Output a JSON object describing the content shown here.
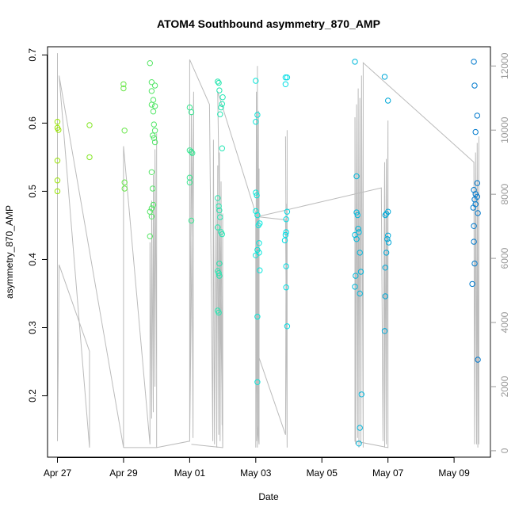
{
  "chart_data": {
    "type": "scatter",
    "title": "ATOM4 Southbound asymmetry_870_AMP",
    "xlabel": "Date",
    "ylabel": "asymmetry_870_AMP",
    "y2label": "",
    "xlim": [
      -0.3,
      13.1
    ],
    "ylim": [
      0.11,
      0.712
    ],
    "y2lim": [
      -200,
      12600
    ],
    "x_ticks": [
      {
        "value": 0,
        "label": "Apr 27"
      },
      {
        "value": 2,
        "label": "Apr 29"
      },
      {
        "value": 4,
        "label": "May 01"
      },
      {
        "value": 6,
        "label": "May 03"
      },
      {
        "value": 8,
        "label": "May 05"
      },
      {
        "value": 10,
        "label": "May 07"
      },
      {
        "value": 12,
        "label": "May 09"
      }
    ],
    "y_ticks": [
      0.2,
      0.3,
      0.4,
      0.5,
      0.6,
      0.7
    ],
    "y2_ticks": [
      0,
      2000,
      4000,
      6000,
      8000,
      10000,
      12000
    ],
    "grid": false,
    "point_color_scale": [
      "#99e600",
      "#00e6e6",
      "#0077cc"
    ],
    "points": [
      {
        "x": 0.0,
        "y": 0.602
      },
      {
        "x": 0.0,
        "y": 0.593
      },
      {
        "x": 0.03,
        "y": 0.59
      },
      {
        "x": 0.0,
        "y": 0.545
      },
      {
        "x": 0.0,
        "y": 0.516
      },
      {
        "x": 0.0,
        "y": 0.5
      },
      {
        "x": 0.97,
        "y": 0.597
      },
      {
        "x": 0.97,
        "y": 0.55
      },
      {
        "x": 2.0,
        "y": 0.657
      },
      {
        "x": 2.0,
        "y": 0.651
      },
      {
        "x": 2.03,
        "y": 0.589
      },
      {
        "x": 2.03,
        "y": 0.513
      },
      {
        "x": 2.03,
        "y": 0.504
      },
      {
        "x": 2.8,
        "y": 0.688
      },
      {
        "x": 2.85,
        "y": 0.66
      },
      {
        "x": 2.95,
        "y": 0.655
      },
      {
        "x": 2.85,
        "y": 0.647
      },
      {
        "x": 2.9,
        "y": 0.634
      },
      {
        "x": 2.85,
        "y": 0.627
      },
      {
        "x": 2.95,
        "y": 0.625
      },
      {
        "x": 2.9,
        "y": 0.617
      },
      {
        "x": 2.92,
        "y": 0.598
      },
      {
        "x": 2.95,
        "y": 0.589
      },
      {
        "x": 2.88,
        "y": 0.582
      },
      {
        "x": 2.92,
        "y": 0.578
      },
      {
        "x": 2.95,
        "y": 0.572
      },
      {
        "x": 2.85,
        "y": 0.528
      },
      {
        "x": 2.88,
        "y": 0.504
      },
      {
        "x": 2.9,
        "y": 0.48
      },
      {
        "x": 2.85,
        "y": 0.475
      },
      {
        "x": 2.8,
        "y": 0.47
      },
      {
        "x": 2.85,
        "y": 0.463
      },
      {
        "x": 2.8,
        "y": 0.434
      },
      {
        "x": 4.0,
        "y": 0.623
      },
      {
        "x": 4.05,
        "y": 0.616
      },
      {
        "x": 4.0,
        "y": 0.56
      },
      {
        "x": 4.05,
        "y": 0.558
      },
      {
        "x": 4.08,
        "y": 0.556
      },
      {
        "x": 4.0,
        "y": 0.52
      },
      {
        "x": 4.0,
        "y": 0.513
      },
      {
        "x": 4.05,
        "y": 0.457
      },
      {
        "x": 4.85,
        "y": 0.661
      },
      {
        "x": 4.88,
        "y": 0.659
      },
      {
        "x": 4.9,
        "y": 0.648
      },
      {
        "x": 5.0,
        "y": 0.638
      },
      {
        "x": 4.98,
        "y": 0.628
      },
      {
        "x": 4.95,
        "y": 0.623
      },
      {
        "x": 4.92,
        "y": 0.613
      },
      {
        "x": 4.98,
        "y": 0.563
      },
      {
        "x": 4.85,
        "y": 0.49
      },
      {
        "x": 4.88,
        "y": 0.478
      },
      {
        "x": 4.9,
        "y": 0.472
      },
      {
        "x": 4.92,
        "y": 0.462
      },
      {
        "x": 4.85,
        "y": 0.447
      },
      {
        "x": 4.95,
        "y": 0.44
      },
      {
        "x": 4.98,
        "y": 0.437
      },
      {
        "x": 4.9,
        "y": 0.394
      },
      {
        "x": 4.85,
        "y": 0.383
      },
      {
        "x": 4.88,
        "y": 0.38
      },
      {
        "x": 4.9,
        "y": 0.376
      },
      {
        "x": 4.85,
        "y": 0.325
      },
      {
        "x": 4.88,
        "y": 0.322
      },
      {
        "x": 6.05,
        "y": 0.612
      },
      {
        "x": 6.0,
        "y": 0.602
      },
      {
        "x": 6.0,
        "y": 0.498
      },
      {
        "x": 6.03,
        "y": 0.494
      },
      {
        "x": 6.0,
        "y": 0.471
      },
      {
        "x": 6.05,
        "y": 0.465
      },
      {
        "x": 6.12,
        "y": 0.453
      },
      {
        "x": 6.08,
        "y": 0.45
      },
      {
        "x": 6.1,
        "y": 0.424
      },
      {
        "x": 6.05,
        "y": 0.414
      },
      {
        "x": 6.1,
        "y": 0.41
      },
      {
        "x": 6.0,
        "y": 0.406
      },
      {
        "x": 6.12,
        "y": 0.384
      },
      {
        "x": 6.05,
        "y": 0.316
      },
      {
        "x": 6.05,
        "y": 0.22
      },
      {
        "x": 6.0,
        "y": 0.662
      },
      {
        "x": 6.9,
        "y": 0.667
      },
      {
        "x": 6.95,
        "y": 0.667
      },
      {
        "x": 6.9,
        "y": 0.657
      },
      {
        "x": 6.95,
        "y": 0.47
      },
      {
        "x": 6.92,
        "y": 0.459
      },
      {
        "x": 6.92,
        "y": 0.44
      },
      {
        "x": 6.9,
        "y": 0.436
      },
      {
        "x": 6.88,
        "y": 0.428
      },
      {
        "x": 6.92,
        "y": 0.39
      },
      {
        "x": 6.92,
        "y": 0.359
      },
      {
        "x": 6.95,
        "y": 0.302
      },
      {
        "x": 9.0,
        "y": 0.69
      },
      {
        "x": 9.05,
        "y": 0.522
      },
      {
        "x": 9.05,
        "y": 0.469
      },
      {
        "x": 9.08,
        "y": 0.465
      },
      {
        "x": 9.1,
        "y": 0.445
      },
      {
        "x": 9.12,
        "y": 0.44
      },
      {
        "x": 9.05,
        "y": 0.43
      },
      {
        "x": 9.0,
        "y": 0.436
      },
      {
        "x": 9.15,
        "y": 0.41
      },
      {
        "x": 9.18,
        "y": 0.382
      },
      {
        "x": 9.02,
        "y": 0.376
      },
      {
        "x": 9.0,
        "y": 0.36
      },
      {
        "x": 9.15,
        "y": 0.35
      },
      {
        "x": 9.2,
        "y": 0.202
      },
      {
        "x": 9.15,
        "y": 0.153
      },
      {
        "x": 9.12,
        "y": 0.13
      },
      {
        "x": 9.9,
        "y": 0.668
      },
      {
        "x": 10.0,
        "y": 0.633
      },
      {
        "x": 10.0,
        "y": 0.47
      },
      {
        "x": 9.95,
        "y": 0.467
      },
      {
        "x": 9.92,
        "y": 0.465
      },
      {
        "x": 10.0,
        "y": 0.435
      },
      {
        "x": 9.98,
        "y": 0.43
      },
      {
        "x": 10.02,
        "y": 0.425
      },
      {
        "x": 9.95,
        "y": 0.41
      },
      {
        "x": 9.92,
        "y": 0.388
      },
      {
        "x": 9.92,
        "y": 0.346
      },
      {
        "x": 9.9,
        "y": 0.295
      },
      {
        "x": 12.6,
        "y": 0.69
      },
      {
        "x": 12.62,
        "y": 0.655
      },
      {
        "x": 12.7,
        "y": 0.611
      },
      {
        "x": 12.65,
        "y": 0.587
      },
      {
        "x": 12.7,
        "y": 0.512
      },
      {
        "x": 12.6,
        "y": 0.502
      },
      {
        "x": 12.65,
        "y": 0.496
      },
      {
        "x": 12.7,
        "y": 0.492
      },
      {
        "x": 12.62,
        "y": 0.488
      },
      {
        "x": 12.65,
        "y": 0.481
      },
      {
        "x": 12.58,
        "y": 0.476
      },
      {
        "x": 12.72,
        "y": 0.468
      },
      {
        "x": 12.6,
        "y": 0.449
      },
      {
        "x": 12.6,
        "y": 0.426
      },
      {
        "x": 12.62,
        "y": 0.394
      },
      {
        "x": 12.55,
        "y": 0.364
      },
      {
        "x": 12.72,
        "y": 0.253
      }
    ],
    "secondary_line": {
      "color": "#bbbbbb",
      "points": [
        [
          0.0,
          300
        ],
        [
          0.0,
          5200
        ],
        [
          0.0,
          12400
        ],
        [
          0.0,
          300
        ],
        [
          0.05,
          5800
        ],
        [
          0.97,
          3100
        ],
        [
          0.97,
          100
        ],
        [
          0.05,
          11700
        ],
        [
          2.0,
          100
        ],
        [
          2.0,
          9500
        ],
        [
          2.8,
          200
        ],
        [
          2.8,
          6500
        ],
        [
          2.85,
          1000
        ],
        [
          2.85,
          7800
        ],
        [
          2.9,
          1200
        ],
        [
          2.9,
          8600
        ],
        [
          2.95,
          2000
        ],
        [
          2.95,
          9400
        ],
        [
          3.0,
          2500
        ],
        [
          3.0,
          9900
        ],
        [
          3.0,
          100
        ],
        [
          2.0,
          100
        ],
        [
          3.0,
          100
        ],
        [
          4.0,
          300
        ],
        [
          4.05,
          10500
        ],
        [
          4.1,
          400
        ],
        [
          4.12,
          11200
        ],
        [
          4.0,
          300
        ],
        [
          4.0,
          12200
        ],
        [
          4.6,
          10800
        ],
        [
          4.7,
          300
        ],
        [
          4.72,
          9700
        ],
        [
          4.75,
          200
        ],
        [
          4.8,
          7800
        ],
        [
          4.82,
          100
        ],
        [
          4.85,
          8900
        ],
        [
          4.88,
          500
        ],
        [
          4.9,
          9300
        ],
        [
          4.92,
          300
        ],
        [
          4.95,
          8400
        ],
        [
          4.98,
          800
        ],
        [
          5.0,
          7400
        ],
        [
          5.0,
          100
        ],
        [
          4.05,
          200
        ],
        [
          5.0,
          100
        ],
        [
          4.85,
          11200
        ],
        [
          6.0,
          7400
        ],
        [
          6.0,
          100
        ],
        [
          6.02,
          11200
        ],
        [
          6.03,
          300
        ],
        [
          6.05,
          12000
        ],
        [
          6.05,
          100
        ],
        [
          6.08,
          10600
        ],
        [
          6.08,
          500
        ],
        [
          6.1,
          8800
        ],
        [
          6.1,
          200
        ],
        [
          6.05,
          800
        ],
        [
          6.0,
          3200
        ],
        [
          6.9,
          500
        ],
        [
          6.92,
          7700
        ],
        [
          6.95,
          100
        ],
        [
          6.9,
          9800
        ],
        [
          6.95,
          400
        ],
        [
          6.95,
          10000
        ],
        [
          6.95,
          100
        ],
        [
          6.9,
          7200
        ],
        [
          6.05,
          7300
        ],
        [
          9.8,
          8200
        ],
        [
          9.85,
          300
        ],
        [
          9.9,
          9000
        ],
        [
          9.9,
          100
        ],
        [
          9.95,
          9100
        ],
        [
          9.95,
          200
        ],
        [
          10.0,
          10300
        ],
        [
          10.0,
          100
        ],
        [
          9.0,
          300
        ],
        [
          9.0,
          10400
        ],
        [
          9.02,
          200
        ],
        [
          9.05,
          10800
        ],
        [
          9.08,
          400
        ],
        [
          9.1,
          11300
        ],
        [
          9.12,
          100
        ],
        [
          9.15,
          11000
        ],
        [
          9.18,
          200
        ],
        [
          9.2,
          11700
        ],
        [
          9.25,
          100
        ],
        [
          9.25,
          12100
        ],
        [
          12.6,
          9000
        ],
        [
          12.62,
          200
        ],
        [
          12.65,
          9300
        ],
        [
          12.68,
          200
        ],
        [
          12.7,
          9600
        ],
        [
          12.72,
          100
        ],
        [
          12.75,
          9800
        ],
        [
          12.75,
          200
        ]
      ]
    }
  }
}
